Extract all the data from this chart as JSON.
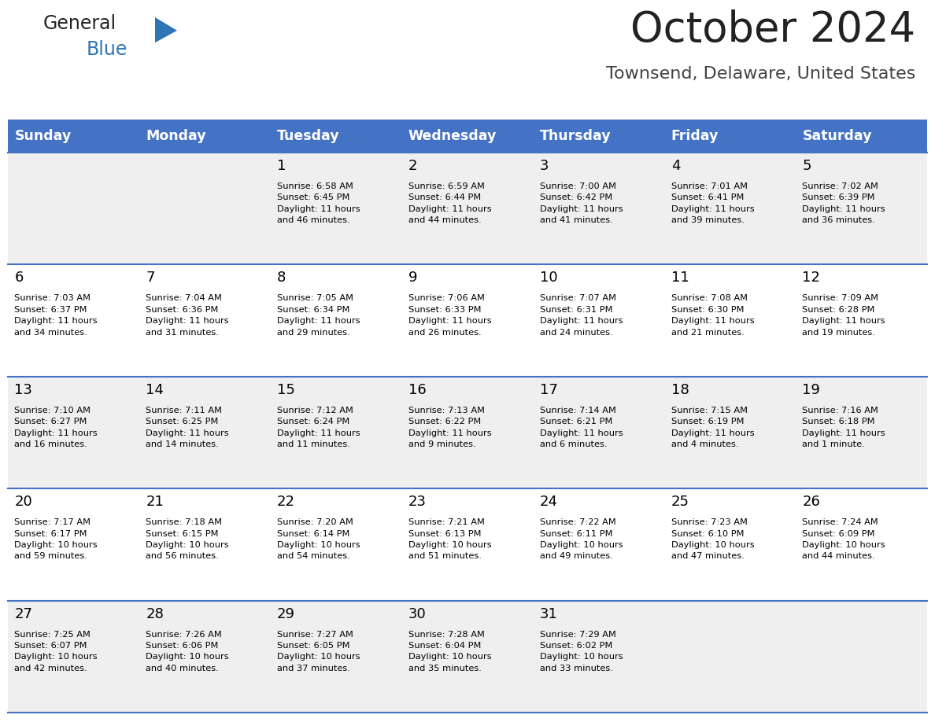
{
  "title": "October 2024",
  "subtitle": "Townsend, Delaware, United States",
  "header_color": "#4472C4",
  "header_text_color": "#FFFFFF",
  "days_of_week": [
    "Sunday",
    "Monday",
    "Tuesday",
    "Wednesday",
    "Thursday",
    "Friday",
    "Saturday"
  ],
  "weeks": [
    [
      {
        "day": "",
        "info": ""
      },
      {
        "day": "",
        "info": ""
      },
      {
        "day": "1",
        "info": "Sunrise: 6:58 AM\nSunset: 6:45 PM\nDaylight: 11 hours\nand 46 minutes."
      },
      {
        "day": "2",
        "info": "Sunrise: 6:59 AM\nSunset: 6:44 PM\nDaylight: 11 hours\nand 44 minutes."
      },
      {
        "day": "3",
        "info": "Sunrise: 7:00 AM\nSunset: 6:42 PM\nDaylight: 11 hours\nand 41 minutes."
      },
      {
        "day": "4",
        "info": "Sunrise: 7:01 AM\nSunset: 6:41 PM\nDaylight: 11 hours\nand 39 minutes."
      },
      {
        "day": "5",
        "info": "Sunrise: 7:02 AM\nSunset: 6:39 PM\nDaylight: 11 hours\nand 36 minutes."
      }
    ],
    [
      {
        "day": "6",
        "info": "Sunrise: 7:03 AM\nSunset: 6:37 PM\nDaylight: 11 hours\nand 34 minutes."
      },
      {
        "day": "7",
        "info": "Sunrise: 7:04 AM\nSunset: 6:36 PM\nDaylight: 11 hours\nand 31 minutes."
      },
      {
        "day": "8",
        "info": "Sunrise: 7:05 AM\nSunset: 6:34 PM\nDaylight: 11 hours\nand 29 minutes."
      },
      {
        "day": "9",
        "info": "Sunrise: 7:06 AM\nSunset: 6:33 PM\nDaylight: 11 hours\nand 26 minutes."
      },
      {
        "day": "10",
        "info": "Sunrise: 7:07 AM\nSunset: 6:31 PM\nDaylight: 11 hours\nand 24 minutes."
      },
      {
        "day": "11",
        "info": "Sunrise: 7:08 AM\nSunset: 6:30 PM\nDaylight: 11 hours\nand 21 minutes."
      },
      {
        "day": "12",
        "info": "Sunrise: 7:09 AM\nSunset: 6:28 PM\nDaylight: 11 hours\nand 19 minutes."
      }
    ],
    [
      {
        "day": "13",
        "info": "Sunrise: 7:10 AM\nSunset: 6:27 PM\nDaylight: 11 hours\nand 16 minutes."
      },
      {
        "day": "14",
        "info": "Sunrise: 7:11 AM\nSunset: 6:25 PM\nDaylight: 11 hours\nand 14 minutes."
      },
      {
        "day": "15",
        "info": "Sunrise: 7:12 AM\nSunset: 6:24 PM\nDaylight: 11 hours\nand 11 minutes."
      },
      {
        "day": "16",
        "info": "Sunrise: 7:13 AM\nSunset: 6:22 PM\nDaylight: 11 hours\nand 9 minutes."
      },
      {
        "day": "17",
        "info": "Sunrise: 7:14 AM\nSunset: 6:21 PM\nDaylight: 11 hours\nand 6 minutes."
      },
      {
        "day": "18",
        "info": "Sunrise: 7:15 AM\nSunset: 6:19 PM\nDaylight: 11 hours\nand 4 minutes."
      },
      {
        "day": "19",
        "info": "Sunrise: 7:16 AM\nSunset: 6:18 PM\nDaylight: 11 hours\nand 1 minute."
      }
    ],
    [
      {
        "day": "20",
        "info": "Sunrise: 7:17 AM\nSunset: 6:17 PM\nDaylight: 10 hours\nand 59 minutes."
      },
      {
        "day": "21",
        "info": "Sunrise: 7:18 AM\nSunset: 6:15 PM\nDaylight: 10 hours\nand 56 minutes."
      },
      {
        "day": "22",
        "info": "Sunrise: 7:20 AM\nSunset: 6:14 PM\nDaylight: 10 hours\nand 54 minutes."
      },
      {
        "day": "23",
        "info": "Sunrise: 7:21 AM\nSunset: 6:13 PM\nDaylight: 10 hours\nand 51 minutes."
      },
      {
        "day": "24",
        "info": "Sunrise: 7:22 AM\nSunset: 6:11 PM\nDaylight: 10 hours\nand 49 minutes."
      },
      {
        "day": "25",
        "info": "Sunrise: 7:23 AM\nSunset: 6:10 PM\nDaylight: 10 hours\nand 47 minutes."
      },
      {
        "day": "26",
        "info": "Sunrise: 7:24 AM\nSunset: 6:09 PM\nDaylight: 10 hours\nand 44 minutes."
      }
    ],
    [
      {
        "day": "27",
        "info": "Sunrise: 7:25 AM\nSunset: 6:07 PM\nDaylight: 10 hours\nand 42 minutes."
      },
      {
        "day": "28",
        "info": "Sunrise: 7:26 AM\nSunset: 6:06 PM\nDaylight: 10 hours\nand 40 minutes."
      },
      {
        "day": "29",
        "info": "Sunrise: 7:27 AM\nSunset: 6:05 PM\nDaylight: 10 hours\nand 37 minutes."
      },
      {
        "day": "30",
        "info": "Sunrise: 7:28 AM\nSunset: 6:04 PM\nDaylight: 10 hours\nand 35 minutes."
      },
      {
        "day": "31",
        "info": "Sunrise: 7:29 AM\nSunset: 6:02 PM\nDaylight: 10 hours\nand 33 minutes."
      },
      {
        "day": "",
        "info": ""
      },
      {
        "day": "",
        "info": ""
      }
    ]
  ],
  "bg_color": "#FFFFFF",
  "cell_bg_even": "#EFEFEF",
  "cell_bg_odd": "#FFFFFF",
  "divider_color": "#4472C4",
  "day_num_color": "#000000",
  "info_text_color": "#000000",
  "logo_general_color": "#222222",
  "logo_blue_color": "#2E75B6",
  "title_color": "#222222",
  "subtitle_color": "#444444",
  "fig_width": 11.88,
  "fig_height": 9.18,
  "dpi": 100
}
